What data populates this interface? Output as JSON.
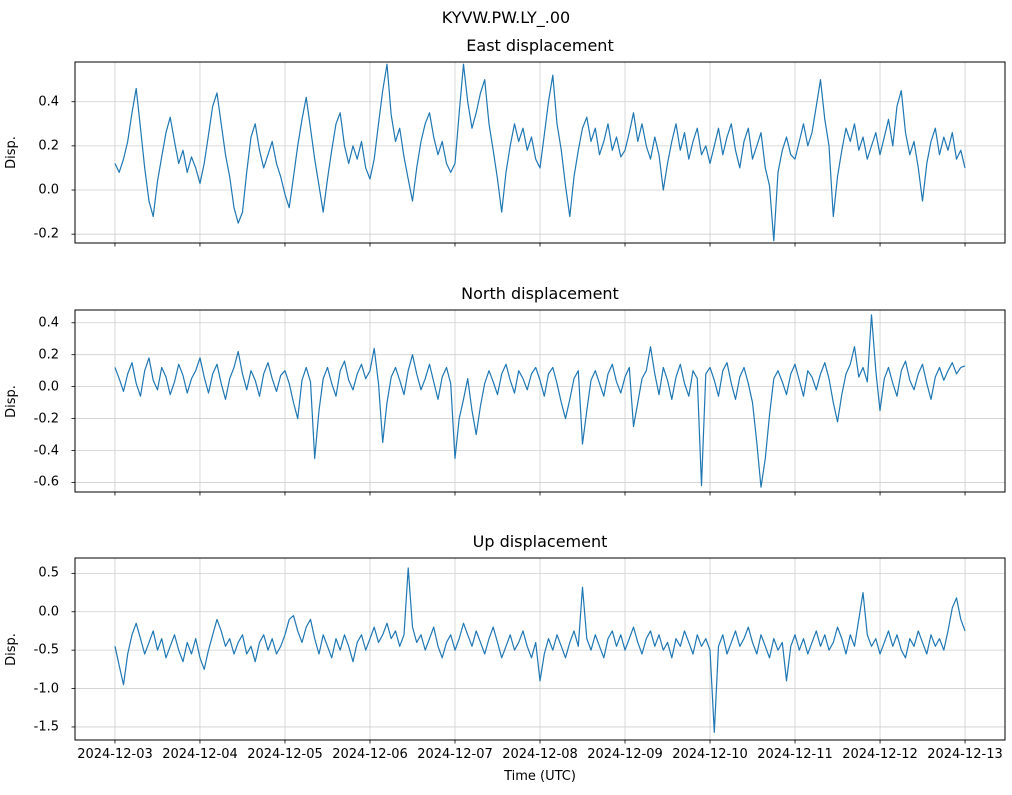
{
  "figure": {
    "suptitle": "KYVW.PW.LY_.00",
    "xlabel": "Time (UTC)",
    "background": "#ffffff",
    "grid_color": "#cfcfcf",
    "accent_color": "#1f77b4"
  },
  "x_axis": {
    "xlim": [
      -0.47,
      10.47
    ],
    "tick_values": [
      0,
      1,
      2,
      3,
      4,
      5,
      6,
      7,
      8,
      9,
      10
    ],
    "tick_labels": [
      "2024-12-03",
      "2024-12-04",
      "2024-12-05",
      "2024-12-06",
      "2024-12-07",
      "2024-12-08",
      "2024-12-09",
      "2024-12-10",
      "2024-12-11",
      "2024-12-12",
      "2024-12-13"
    ]
  },
  "chart_data": [
    {
      "type": "line",
      "title": "East displacement",
      "ylabel": "Disp.",
      "line_color": "#1f77b4",
      "grid": true,
      "ylim": [
        -0.24,
        0.58
      ],
      "yticks": [
        -0.2,
        0.0,
        0.2,
        0.4
      ],
      "x_unit": "days since 2024-12-03",
      "x_start": 0.0,
      "x_step": 0.05,
      "values": [
        0.12,
        0.08,
        0.14,
        0.22,
        0.35,
        0.46,
        0.28,
        0.1,
        -0.05,
        -0.12,
        0.04,
        0.15,
        0.26,
        0.33,
        0.22,
        0.12,
        0.18,
        0.08,
        0.15,
        0.1,
        0.03,
        0.12,
        0.25,
        0.38,
        0.44,
        0.3,
        0.16,
        0.06,
        -0.08,
        -0.15,
        -0.1,
        0.08,
        0.24,
        0.3,
        0.18,
        0.1,
        0.16,
        0.22,
        0.12,
        0.06,
        -0.02,
        -0.08,
        0.06,
        0.2,
        0.32,
        0.42,
        0.28,
        0.14,
        0.02,
        -0.1,
        0.05,
        0.18,
        0.3,
        0.35,
        0.2,
        0.12,
        0.2,
        0.14,
        0.22,
        0.1,
        0.05,
        0.14,
        0.3,
        0.45,
        0.57,
        0.34,
        0.22,
        0.28,
        0.15,
        0.05,
        -0.05,
        0.1,
        0.22,
        0.3,
        0.35,
        0.24,
        0.16,
        0.22,
        0.12,
        0.08,
        0.12,
        0.35,
        0.57,
        0.4,
        0.28,
        0.35,
        0.44,
        0.5,
        0.3,
        0.18,
        0.05,
        -0.1,
        0.08,
        0.2,
        0.3,
        0.22,
        0.28,
        0.18,
        0.24,
        0.14,
        0.1,
        0.25,
        0.4,
        0.52,
        0.3,
        0.18,
        0.02,
        -0.12,
        0.06,
        0.18,
        0.28,
        0.33,
        0.22,
        0.28,
        0.16,
        0.22,
        0.3,
        0.18,
        0.24,
        0.15,
        0.18,
        0.26,
        0.35,
        0.22,
        0.3,
        0.2,
        0.14,
        0.24,
        0.16,
        0.0,
        0.12,
        0.22,
        0.3,
        0.18,
        0.26,
        0.14,
        0.22,
        0.28,
        0.16,
        0.2,
        0.12,
        0.2,
        0.28,
        0.16,
        0.24,
        0.3,
        0.18,
        0.1,
        0.22,
        0.28,
        0.14,
        0.2,
        0.26,
        0.1,
        0.02,
        -0.23,
        0.08,
        0.18,
        0.24,
        0.16,
        0.14,
        0.22,
        0.3,
        0.2,
        0.26,
        0.38,
        0.5,
        0.32,
        0.2,
        -0.12,
        0.06,
        0.18,
        0.28,
        0.22,
        0.3,
        0.18,
        0.24,
        0.14,
        0.2,
        0.26,
        0.16,
        0.24,
        0.32,
        0.2,
        0.38,
        0.45,
        0.26,
        0.16,
        0.22,
        0.1,
        -0.05,
        0.12,
        0.22,
        0.28,
        0.16,
        0.24,
        0.18,
        0.26,
        0.14,
        0.18,
        0.1
      ]
    },
    {
      "type": "line",
      "title": "North displacement",
      "ylabel": "Disp.",
      "line_color": "#1f77b4",
      "grid": true,
      "ylim": [
        -0.66,
        0.48
      ],
      "yticks": [
        -0.6,
        -0.4,
        -0.2,
        0.0,
        0.2,
        0.4
      ],
      "x_unit": "days since 2024-12-03",
      "x_start": 0.0,
      "x_step": 0.05,
      "values": [
        0.12,
        0.05,
        -0.03,
        0.08,
        0.15,
        0.02,
        -0.06,
        0.1,
        0.18,
        0.04,
        -0.02,
        0.12,
        0.06,
        -0.05,
        0.03,
        0.14,
        0.07,
        -0.04,
        0.05,
        0.1,
        0.18,
        0.06,
        -0.04,
        0.08,
        0.14,
        0.02,
        -0.08,
        0.05,
        0.12,
        0.22,
        0.08,
        -0.02,
        0.1,
        0.04,
        -0.06,
        0.08,
        0.15,
        0.05,
        -0.03,
        0.07,
        0.1,
        0.02,
        -0.1,
        -0.2,
        0.04,
        0.12,
        0.03,
        -0.45,
        -0.15,
        0.05,
        0.12,
        0.02,
        -0.06,
        0.1,
        0.16,
        0.04,
        -0.02,
        0.08,
        0.14,
        0.05,
        0.1,
        0.24,
        0.02,
        -0.35,
        -0.1,
        0.06,
        0.12,
        0.04,
        -0.05,
        0.1,
        0.2,
        0.08,
        -0.02,
        0.05,
        0.14,
        0.03,
        -0.08,
        0.06,
        0.12,
        0.02,
        -0.45,
        -0.2,
        -0.08,
        0.05,
        -0.15,
        -0.3,
        -0.12,
        0.02,
        0.1,
        0.03,
        -0.05,
        0.08,
        0.14,
        0.04,
        -0.04,
        0.1,
        0.05,
        -0.02,
        0.08,
        0.12,
        0.04,
        -0.06,
        0.08,
        0.12,
        0.02,
        -0.1,
        -0.2,
        -0.08,
        0.05,
        0.1,
        -0.36,
        -0.15,
        0.04,
        0.1,
        0.02,
        -0.06,
        0.08,
        0.14,
        0.03,
        -0.04,
        0.06,
        0.12,
        -0.25,
        -0.1,
        0.05,
        0.1,
        0.25,
        0.08,
        -0.05,
        0.12,
        0.04,
        -0.08,
        0.06,
        0.14,
        0.02,
        -0.06,
        0.1,
        0.05,
        -0.62,
        0.08,
        0.12,
        0.04,
        -0.06,
        0.1,
        0.15,
        0.02,
        -0.08,
        0.06,
        0.12,
        0.02,
        -0.1,
        -0.35,
        -0.63,
        -0.45,
        -0.18,
        0.05,
        0.1,
        0.03,
        -0.05,
        0.08,
        0.14,
        0.04,
        -0.06,
        0.1,
        0.06,
        -0.02,
        0.08,
        0.15,
        0.05,
        -0.1,
        -0.22,
        -0.05,
        0.08,
        0.14,
        0.25,
        0.06,
        0.12,
        0.03,
        0.45,
        0.1,
        -0.15,
        0.05,
        0.12,
        0.02,
        -0.06,
        0.1,
        0.16,
        0.04,
        -0.02,
        0.08,
        0.14,
        0.02,
        -0.08,
        0.06,
        0.12,
        0.04,
        0.1,
        0.15,
        0.08,
        0.12,
        0.13
      ]
    },
    {
      "type": "line",
      "title": "Up displacement",
      "ylabel": "Disp.",
      "line_color": "#1f77b4",
      "grid": true,
      "ylim": [
        -1.67,
        0.7
      ],
      "yticks": [
        -1.5,
        -1.0,
        -0.5,
        0.0,
        0.5
      ],
      "x_unit": "days since 2024-12-03",
      "x_start": 0.0,
      "x_step": 0.05,
      "values": [
        -0.45,
        -0.7,
        -0.95,
        -0.55,
        -0.3,
        -0.15,
        -0.35,
        -0.55,
        -0.4,
        -0.25,
        -0.5,
        -0.35,
        -0.6,
        -0.45,
        -0.3,
        -0.5,
        -0.65,
        -0.4,
        -0.55,
        -0.35,
        -0.6,
        -0.75,
        -0.5,
        -0.3,
        -0.1,
        -0.25,
        -0.45,
        -0.35,
        -0.55,
        -0.4,
        -0.3,
        -0.55,
        -0.45,
        -0.65,
        -0.4,
        -0.3,
        -0.5,
        -0.35,
        -0.55,
        -0.45,
        -0.3,
        -0.1,
        -0.05,
        -0.25,
        -0.4,
        -0.2,
        -0.1,
        -0.35,
        -0.55,
        -0.3,
        -0.45,
        -0.6,
        -0.35,
        -0.5,
        -0.3,
        -0.45,
        -0.65,
        -0.4,
        -0.3,
        -0.5,
        -0.35,
        -0.2,
        -0.4,
        -0.3,
        -0.15,
        -0.35,
        -0.25,
        -0.45,
        -0.3,
        0.57,
        -0.2,
        -0.4,
        -0.3,
        -0.5,
        -0.35,
        -0.2,
        -0.45,
        -0.6,
        -0.4,
        -0.3,
        -0.5,
        -0.35,
        -0.15,
        -0.3,
        -0.45,
        -0.25,
        -0.4,
        -0.55,
        -0.35,
        -0.2,
        -0.4,
        -0.6,
        -0.45,
        -0.3,
        -0.5,
        -0.4,
        -0.25,
        -0.45,
        -0.6,
        -0.4,
        -0.9,
        -0.55,
        -0.35,
        -0.5,
        -0.3,
        -0.45,
        -0.6,
        -0.4,
        -0.25,
        -0.45,
        0.32,
        -0.35,
        -0.5,
        -0.3,
        -0.45,
        -0.6,
        -0.35,
        -0.25,
        -0.45,
        -0.3,
        -0.5,
        -0.35,
        -0.2,
        -0.4,
        -0.55,
        -0.35,
        -0.25,
        -0.45,
        -0.3,
        -0.5,
        -0.4,
        -0.6,
        -0.35,
        -0.45,
        -0.25,
        -0.4,
        -0.55,
        -0.3,
        -0.45,
        -0.35,
        -0.5,
        -1.57,
        -0.45,
        -0.3,
        -0.55,
        -0.4,
        -0.25,
        -0.45,
        -0.35,
        -0.2,
        -0.4,
        -0.55,
        -0.3,
        -0.45,
        -0.6,
        -0.35,
        -0.5,
        -0.4,
        -0.9,
        -0.45,
        -0.3,
        -0.5,
        -0.35,
        -0.55,
        -0.4,
        -0.25,
        -0.45,
        -0.3,
        -0.5,
        -0.4,
        -0.2,
        -0.35,
        -0.55,
        -0.3,
        -0.45,
        -0.1,
        0.25,
        -0.3,
        -0.45,
        -0.35,
        -0.55,
        -0.4,
        -0.25,
        -0.45,
        -0.3,
        -0.5,
        -0.6,
        -0.35,
        -0.45,
        -0.25,
        -0.4,
        -0.55,
        -0.3,
        -0.45,
        -0.35,
        -0.5,
        -0.25,
        0.05,
        0.18,
        -0.1,
        -0.25
      ]
    }
  ]
}
